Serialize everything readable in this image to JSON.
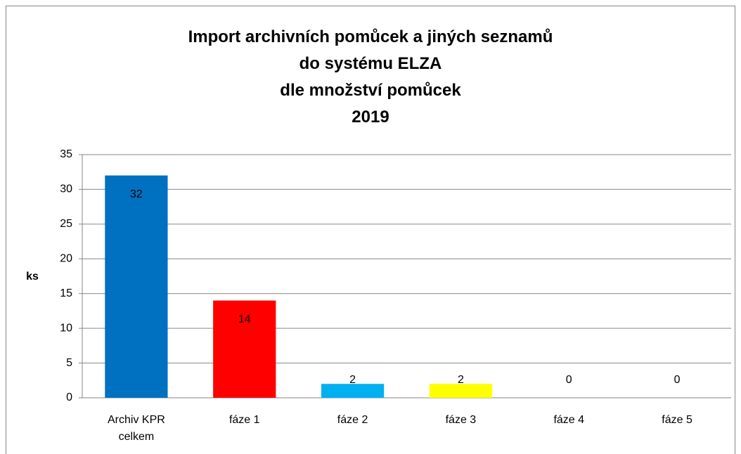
{
  "chart_data": {
    "type": "bar",
    "title": "Import archivních pomůcek a jiných seznamů\ndo systému ELZA\ndle množství pomůcek\n2019",
    "y_label": "ks",
    "categories": [
      "Archiv KPR\ncelkem",
      "fáze 1",
      "fáze 2",
      "fáze 3",
      "fáze 4",
      "fáze 5"
    ],
    "values": [
      32,
      14,
      2,
      2,
      0,
      0
    ],
    "colors": [
      "#0070c0",
      "#ff0000",
      "#00b0f0",
      "#ffff00",
      "#00b050",
      "#7030a0"
    ],
    "ylim": [
      0,
      35
    ],
    "yticks": [
      0,
      5,
      10,
      15,
      20,
      25,
      30,
      35
    ],
    "grid": true
  }
}
